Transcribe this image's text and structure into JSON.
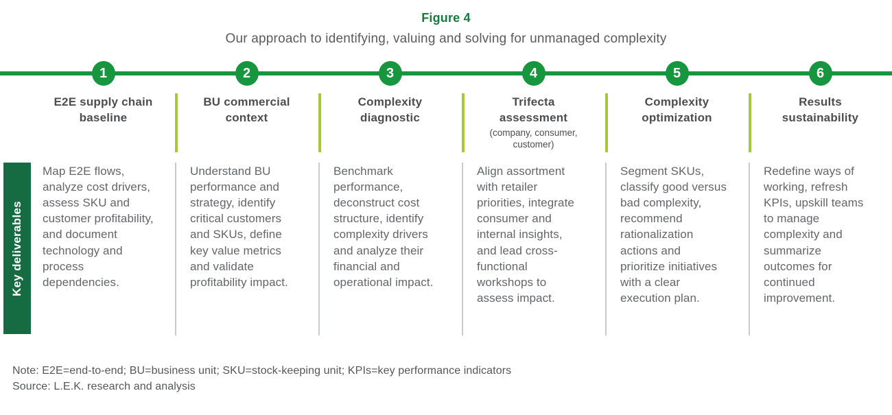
{
  "figure": {
    "label": "Figure 4",
    "title": "Our approach to identifying, valuing and solving for unmanaged complexity"
  },
  "row_label": "Key deliverables",
  "steps": [
    {
      "number": "1",
      "title": "E2E supply chain baseline",
      "subtitle": "",
      "body": "Map E2E flows, analyze cost drivers, assess SKU and customer profitability, and document technology and process dependencies."
    },
    {
      "number": "2",
      "title": "BU commercial context",
      "subtitle": "",
      "body": "Understand BU performance and strategy, identify critical customers and SKUs, define key value metrics and validate profitability impact."
    },
    {
      "number": "3",
      "title": "Complexity diagnostic",
      "subtitle": "",
      "body": "Benchmark performance, deconstruct cost structure, identify complexity drivers and analyze their financial and operational impact."
    },
    {
      "number": "4",
      "title": "Trifecta assessment",
      "subtitle": "(company, consumer, customer)",
      "body": "Align assortment with retailer priorities, integrate consumer and internal insights, and lead cross-functional workshops to assess impact."
    },
    {
      "number": "5",
      "title": "Complexity optimization",
      "subtitle": "",
      "body": "Segment SKUs, classify good versus bad complexity, recommend rationalization actions and prioritize initiatives with a clear execution plan."
    },
    {
      "number": "6",
      "title": "Results sustainability",
      "subtitle": "",
      "body": "Redefine ways of working, refresh KPIs, upskill teams to manage complexity and summarize outcomes for continued improvement."
    }
  ],
  "footer": {
    "note": "Note: E2E=end-to-end; BU=business unit; SKU=stock-keeping unit; KPIs=key performance indicators",
    "source": "Source: L.E.K. research and analysis"
  },
  "colors": {
    "green_primary": "#18953F",
    "green_dark_bar": "#176B42",
    "green_figure_label": "#177B3D",
    "lime_divider": "#A6C93B",
    "gray_divider": "#C9CCCC",
    "header_text": "#4C4D4F",
    "body_text": "#636569"
  }
}
